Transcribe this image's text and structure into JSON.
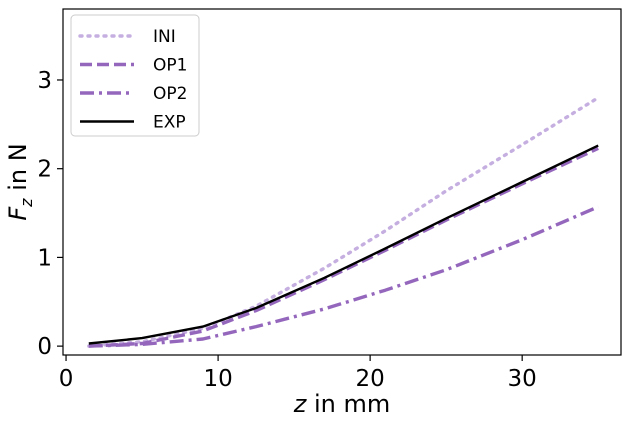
{
  "chart_data": {
    "type": "line",
    "title": "",
    "xlabel": {
      "var": "z",
      "rest": " in mm"
    },
    "ylabel": {
      "var": "F",
      "sub": "z",
      "rest": " in N"
    },
    "xlim": [
      -0.2,
      36.5
    ],
    "ylim": [
      -0.1,
      3.8
    ],
    "xticks": [
      0,
      10,
      20,
      30
    ],
    "yticks": [
      0,
      1,
      2,
      3
    ],
    "grid": false,
    "legend_position": "top-left",
    "series": [
      {
        "name": "INI",
        "color": "#c5aee0",
        "style": "dotted",
        "x": [
          1.5,
          5,
          9,
          12.5,
          17,
          21,
          25,
          30,
          35
        ],
        "y": [
          0.0,
          0.05,
          0.2,
          0.45,
          0.88,
          1.3,
          1.75,
          2.27,
          2.8
        ]
      },
      {
        "name": "OP1",
        "color": "#9467bd",
        "style": "dashed",
        "x": [
          1.5,
          5,
          9,
          12.5,
          17,
          21,
          25,
          30,
          35
        ],
        "y": [
          0.0,
          0.03,
          0.17,
          0.4,
          0.75,
          1.08,
          1.42,
          1.83,
          2.23
        ]
      },
      {
        "name": "OP2",
        "color": "#9467bd",
        "style": "dashdot",
        "x": [
          1.5,
          5,
          9,
          12.5,
          17,
          21,
          25,
          30,
          35
        ],
        "y": [
          0.0,
          0.02,
          0.08,
          0.22,
          0.42,
          0.63,
          0.86,
          1.2,
          1.57
        ]
      },
      {
        "name": "EXP",
        "color": "#000000",
        "style": "solid",
        "x": [
          1.5,
          5,
          9,
          12.5,
          17,
          21,
          25,
          30,
          35
        ],
        "y": [
          0.03,
          0.09,
          0.22,
          0.43,
          0.77,
          1.1,
          1.44,
          1.85,
          2.26
        ]
      }
    ]
  }
}
